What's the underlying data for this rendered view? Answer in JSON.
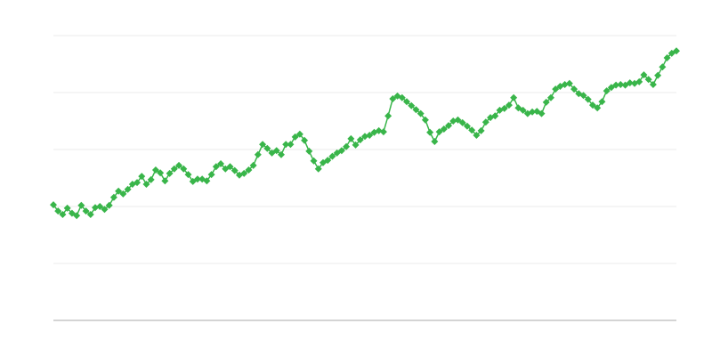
{
  "chart_data": {
    "type": "line",
    "title": "",
    "xlabel": "",
    "ylabel": "",
    "ylim": [
      0,
      5
    ],
    "grid": true,
    "legend": "none",
    "marker": "diamond",
    "series_color": "#39b54a",
    "grid_color": "#ebebeb",
    "axis_color": "#aaaaaa",
    "series": [
      {
        "values": [
          2.03,
          1.92,
          1.86,
          1.97,
          1.88,
          1.84,
          2.02,
          1.92,
          1.86,
          1.98,
          2.0,
          1.95,
          2.02,
          2.16,
          2.27,
          2.22,
          2.3,
          2.39,
          2.42,
          2.53,
          2.39,
          2.47,
          2.64,
          2.59,
          2.45,
          2.58,
          2.66,
          2.72,
          2.66,
          2.56,
          2.44,
          2.48,
          2.48,
          2.45,
          2.56,
          2.7,
          2.75,
          2.66,
          2.7,
          2.63,
          2.55,
          2.58,
          2.64,
          2.72,
          2.91,
          3.09,
          3.02,
          2.94,
          2.98,
          2.91,
          3.09,
          3.09,
          3.22,
          3.27,
          3.16,
          2.97,
          2.8,
          2.66,
          2.77,
          2.81,
          2.88,
          2.94,
          2.98,
          3.05,
          3.19,
          3.08,
          3.17,
          3.23,
          3.25,
          3.3,
          3.33,
          3.31,
          3.59,
          3.89,
          3.94,
          3.91,
          3.84,
          3.77,
          3.7,
          3.63,
          3.52,
          3.3,
          3.14,
          3.31,
          3.36,
          3.42,
          3.5,
          3.52,
          3.47,
          3.41,
          3.34,
          3.25,
          3.33,
          3.48,
          3.56,
          3.59,
          3.69,
          3.72,
          3.78,
          3.91,
          3.73,
          3.69,
          3.63,
          3.66,
          3.67,
          3.63,
          3.83,
          3.91,
          4.06,
          4.11,
          4.14,
          4.16,
          4.06,
          3.98,
          3.95,
          3.88,
          3.78,
          3.73,
          3.84,
          4.03,
          4.09,
          4.13,
          4.14,
          4.13,
          4.17,
          4.16,
          4.19,
          4.31,
          4.23,
          4.14,
          4.3,
          4.45,
          4.61,
          4.69,
          4.73
        ]
      }
    ]
  }
}
